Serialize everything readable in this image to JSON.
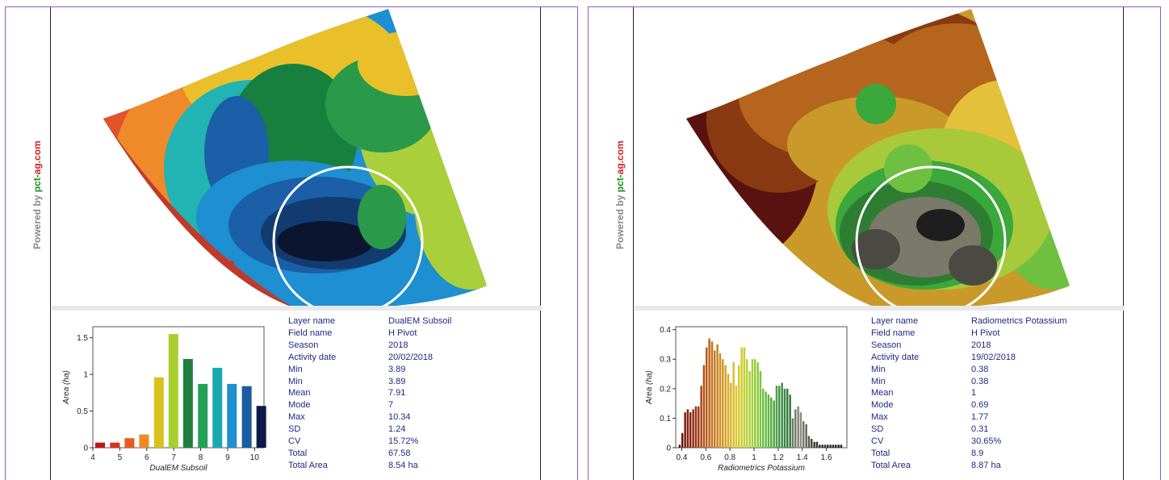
{
  "panels": [
    {
      "powered_prefix": "Powered by ",
      "powered_brand_a": "pct-",
      "powered_brand_b": "ag.com",
      "info_labels": [
        "Layer name",
        "Field name",
        "Season",
        "Activity date",
        "Min",
        "Min",
        "Mean",
        "Mode",
        "Max",
        "SD",
        "CV",
        "Total",
        "Total Area"
      ],
      "info_values": [
        "DualEM Subsoil",
        "H Pivot",
        "2018",
        "20/02/2018",
        "3.89",
        "3.89",
        "7.91",
        "7",
        "10.34",
        "1.24",
        "15.72%",
        "67.58",
        "8.54 ha"
      ],
      "map_palette": [
        "#c0392b",
        "#e2532b",
        "#ee8a2a",
        "#e9c02a",
        "#a9cf3a",
        "#2a9a4a",
        "#17803f",
        "#22b3b3",
        "#1e8fd0",
        "#1b5fa8",
        "#123c70",
        "#0c1530"
      ]
    },
    {
      "powered_prefix": "Powered by ",
      "powered_brand_a": "pct-",
      "powered_brand_b": "ag.com",
      "info_labels": [
        "Layer name",
        "Field name",
        "Season",
        "Activity date",
        "Min",
        "Min",
        "Mean",
        "Mode",
        "Max",
        "SD",
        "CV",
        "Total",
        "Total Area"
      ],
      "info_values": [
        "Radiometrics Potassium",
        "H Pivot",
        "2018",
        "19/02/2018",
        "0.38",
        "0.38",
        "1",
        "0.69",
        "1.77",
        "0.31",
        "30.65%",
        "8.9",
        "8.87 ha"
      ],
      "map_palette": [
        "#5a1210",
        "#8a3a12",
        "#b5651d",
        "#c99a2a",
        "#e4c13a",
        "#a8c93a",
        "#6fc040",
        "#3aa83a",
        "#2e7d32",
        "#7a7a6a",
        "#4a4a42",
        "#1e1e1e"
      ]
    }
  ],
  "chart_data": [
    {
      "type": "bar",
      "xlabel": "DualEM Subsoil",
      "ylabel": "Area (ha)",
      "xlim": [
        4,
        10.35
      ],
      "ylim": [
        0,
        1.65
      ],
      "xticks": [
        4,
        5,
        6,
        7,
        8,
        9,
        10
      ],
      "xtick_labels": [
        "4",
        "5",
        "6",
        "7",
        "8",
        "9",
        "10"
      ],
      "yticks": [
        0,
        0.5,
        1,
        1.5
      ],
      "ytick_labels": [
        "0",
        "0.5",
        "1",
        "1.5"
      ],
      "bar_width": 0.36,
      "x": [
        4.27,
        4.82,
        5.36,
        5.9,
        6.45,
        6.99,
        7.53,
        8.08,
        8.62,
        9.16,
        9.71,
        10.25
      ],
      "values": [
        0.07,
        0.07,
        0.13,
        0.18,
        0.96,
        1.55,
        1.21,
        0.87,
        1.09,
        0.87,
        0.84,
        0.57
      ],
      "colors": [
        "#c0160f",
        "#d8301a",
        "#e85a1e",
        "#f08a22",
        "#d9c21c",
        "#a9cf2e",
        "#1e7f3c",
        "#25a058",
        "#1aa8b0",
        "#1e8fd0",
        "#1a5c9e",
        "#0d1a4a"
      ]
    },
    {
      "type": "bar",
      "xlabel": "Radiometrics Potassium",
      "ylabel": "Area (ha)",
      "xlim": [
        0.35,
        1.77
      ],
      "ylim": [
        0,
        0.41
      ],
      "xticks": [
        0.4,
        0.6,
        0.8,
        1,
        1.2,
        1.4,
        1.6
      ],
      "xtick_labels": [
        "0.4",
        "0.6",
        "0.8",
        "1",
        "1.2",
        "1.4",
        "1.6"
      ],
      "yticks": [
        0,
        0.1,
        0.2,
        0.3,
        0.4
      ],
      "ytick_labels": [
        "0",
        "0.1",
        "0.2",
        "0.3",
        "0.4"
      ],
      "bar_width": 0.0165,
      "x": [
        0.383,
        0.405,
        0.428,
        0.45,
        0.472,
        0.495,
        0.517,
        0.539,
        0.562,
        0.584,
        0.606,
        0.629,
        0.651,
        0.673,
        0.696,
        0.718,
        0.74,
        0.763,
        0.785,
        0.807,
        0.83,
        0.852,
        0.874,
        0.897,
        0.919,
        0.941,
        0.964,
        0.986,
        1.008,
        1.031,
        1.053,
        1.075,
        1.098,
        1.12,
        1.142,
        1.165,
        1.187,
        1.209,
        1.232,
        1.254,
        1.276,
        1.299,
        1.321,
        1.343,
        1.366,
        1.388,
        1.41,
        1.433,
        1.455,
        1.477,
        1.5,
        1.522,
        1.544,
        1.567,
        1.589,
        1.611,
        1.634,
        1.656,
        1.678,
        1.701,
        1.723
      ],
      "values": [
        0.01,
        0.05,
        0.12,
        0.13,
        0.12,
        0.13,
        0.14,
        0.14,
        0.21,
        0.28,
        0.34,
        0.37,
        0.36,
        0.33,
        0.35,
        0.32,
        0.3,
        0.28,
        0.25,
        0.22,
        0.29,
        0.21,
        0.28,
        0.34,
        0.34,
        0.3,
        0.26,
        0.3,
        0.3,
        0.29,
        0.26,
        0.2,
        0.19,
        0.18,
        0.17,
        0.16,
        0.21,
        0.21,
        0.22,
        0.2,
        0.2,
        0.18,
        0.1,
        0.13,
        0.14,
        0.12,
        0.09,
        0.08,
        0.04,
        0.03,
        0.02,
        0.02,
        0.01,
        0.01,
        0.01,
        0.01,
        0.01,
        0.01,
        0.01,
        0.01,
        0.01
      ],
      "colors": [
        "#5a0f0c",
        "#6a140e",
        "#781a10",
        "#821f10",
        "#8a2410",
        "#922a10",
        "#983012",
        "#a03a12",
        "#a84412",
        "#b04e14",
        "#b85a16",
        "#bd6418",
        "#c06e1a",
        "#c4781c",
        "#c8821e",
        "#cc8c20",
        "#d09622",
        "#d4a024",
        "#d6aa26",
        "#d8b428",
        "#dcbe2a",
        "#dcc62c",
        "#d6ca2e",
        "#cccd30",
        "#c2cf32",
        "#b8d034",
        "#aed036",
        "#a2cf38",
        "#96cd3a",
        "#8aca3c",
        "#7ec63e",
        "#72c240",
        "#68bd42",
        "#60b644",
        "#58ae46",
        "#50a648",
        "#4a9e48",
        "#449646",
        "#3e8e44",
        "#3a8642",
        "#367e40",
        "#347a40",
        "#6e7a60",
        "#7a8068",
        "#88867a",
        "#8e8c80",
        "#7a786c",
        "#6a685c",
        "#5a584e",
        "#4a483f",
        "#3e3c34",
        "#36342e",
        "#30302a",
        "#2c2c26",
        "#2a2a24",
        "#282822",
        "#262620",
        "#24241f",
        "#22221e",
        "#20201c",
        "#1e1e1b"
      ]
    }
  ]
}
